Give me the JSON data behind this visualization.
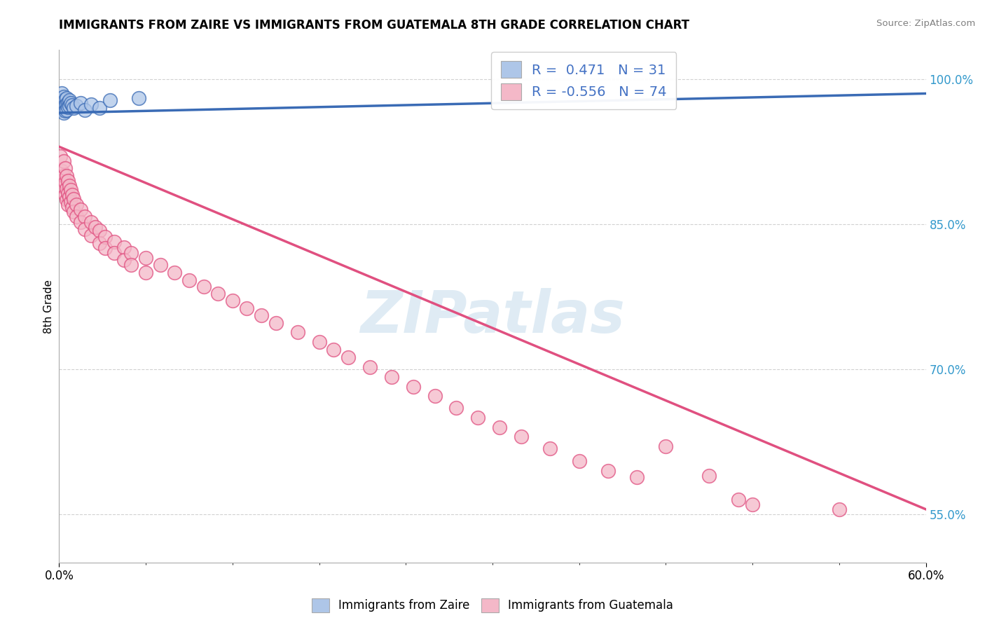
{
  "title": "IMMIGRANTS FROM ZAIRE VS IMMIGRANTS FROM GUATEMALA 8TH GRADE CORRELATION CHART",
  "source": "Source: ZipAtlas.com",
  "ylabel": "8th Grade",
  "legend1_label": "Immigrants from Zaire",
  "legend2_label": "Immigrants from Guatemala",
  "R1": 0.471,
  "N1": 31,
  "R2": -0.556,
  "N2": 74,
  "color_zaire": "#aec6e8",
  "color_guatemala": "#f4b8c8",
  "color_zaire_line": "#3a6bb5",
  "color_guatemala_line": "#e05080",
  "watermark": "ZIPatlas",
  "xlim": [
    0.0,
    0.6
  ],
  "ylim": [
    0.5,
    1.03
  ],
  "ytick_vals": [
    0.55,
    0.7,
    0.85,
    1.0
  ],
  "ytick_labels": [
    "55.0%",
    "70.0%",
    "85.0%",
    "100.0%"
  ],
  "zaire_scatter": [
    [
      0.001,
      0.98
    ],
    [
      0.001,
      0.975
    ],
    [
      0.001,
      0.97
    ],
    [
      0.002,
      0.985
    ],
    [
      0.002,
      0.978
    ],
    [
      0.002,
      0.972
    ],
    [
      0.002,
      0.968
    ],
    [
      0.003,
      0.982
    ],
    [
      0.003,
      0.976
    ],
    [
      0.003,
      0.97
    ],
    [
      0.003,
      0.965
    ],
    [
      0.004,
      0.979
    ],
    [
      0.004,
      0.973
    ],
    [
      0.004,
      0.967
    ],
    [
      0.005,
      0.98
    ],
    [
      0.005,
      0.974
    ],
    [
      0.005,
      0.968
    ],
    [
      0.006,
      0.976
    ],
    [
      0.006,
      0.971
    ],
    [
      0.007,
      0.978
    ],
    [
      0.007,
      0.972
    ],
    [
      0.008,
      0.975
    ],
    [
      0.009,
      0.973
    ],
    [
      0.01,
      0.97
    ],
    [
      0.012,
      0.972
    ],
    [
      0.015,
      0.975
    ],
    [
      0.018,
      0.968
    ],
    [
      0.022,
      0.974
    ],
    [
      0.028,
      0.97
    ],
    [
      0.035,
      0.978
    ],
    [
      0.055,
      0.98
    ]
  ],
  "guatemala_scatter": [
    [
      0.001,
      0.92
    ],
    [
      0.002,
      0.905
    ],
    [
      0.002,
      0.895
    ],
    [
      0.003,
      0.915
    ],
    [
      0.003,
      0.9
    ],
    [
      0.003,
      0.888
    ],
    [
      0.004,
      0.908
    ],
    [
      0.004,
      0.893
    ],
    [
      0.004,
      0.88
    ],
    [
      0.005,
      0.9
    ],
    [
      0.005,
      0.887
    ],
    [
      0.005,
      0.875
    ],
    [
      0.006,
      0.895
    ],
    [
      0.006,
      0.882
    ],
    [
      0.006,
      0.87
    ],
    [
      0.007,
      0.89
    ],
    [
      0.007,
      0.878
    ],
    [
      0.008,
      0.885
    ],
    [
      0.008,
      0.873
    ],
    [
      0.009,
      0.88
    ],
    [
      0.009,
      0.867
    ],
    [
      0.01,
      0.876
    ],
    [
      0.01,
      0.863
    ],
    [
      0.012,
      0.87
    ],
    [
      0.012,
      0.858
    ],
    [
      0.015,
      0.865
    ],
    [
      0.015,
      0.852
    ],
    [
      0.018,
      0.858
    ],
    [
      0.018,
      0.845
    ],
    [
      0.022,
      0.852
    ],
    [
      0.022,
      0.838
    ],
    [
      0.025,
      0.847
    ],
    [
      0.028,
      0.843
    ],
    [
      0.028,
      0.83
    ],
    [
      0.032,
      0.837
    ],
    [
      0.032,
      0.825
    ],
    [
      0.038,
      0.832
    ],
    [
      0.038,
      0.82
    ],
    [
      0.045,
      0.826
    ],
    [
      0.045,
      0.813
    ],
    [
      0.05,
      0.82
    ],
    [
      0.05,
      0.808
    ],
    [
      0.06,
      0.815
    ],
    [
      0.06,
      0.8
    ],
    [
      0.07,
      0.808
    ],
    [
      0.08,
      0.8
    ],
    [
      0.09,
      0.792
    ],
    [
      0.1,
      0.785
    ],
    [
      0.11,
      0.778
    ],
    [
      0.12,
      0.771
    ],
    [
      0.13,
      0.763
    ],
    [
      0.14,
      0.756
    ],
    [
      0.15,
      0.748
    ],
    [
      0.165,
      0.738
    ],
    [
      0.18,
      0.728
    ],
    [
      0.19,
      0.72
    ],
    [
      0.2,
      0.712
    ],
    [
      0.215,
      0.702
    ],
    [
      0.23,
      0.692
    ],
    [
      0.245,
      0.682
    ],
    [
      0.26,
      0.672
    ],
    [
      0.275,
      0.66
    ],
    [
      0.29,
      0.65
    ],
    [
      0.305,
      0.64
    ],
    [
      0.32,
      0.63
    ],
    [
      0.34,
      0.618
    ],
    [
      0.36,
      0.605
    ],
    [
      0.38,
      0.595
    ],
    [
      0.4,
      0.588
    ],
    [
      0.42,
      0.62
    ],
    [
      0.45,
      0.59
    ],
    [
      0.47,
      0.565
    ],
    [
      0.48,
      0.56
    ],
    [
      0.54,
      0.555
    ]
  ],
  "zaire_line": [
    [
      0.0,
      0.965
    ],
    [
      0.6,
      0.985
    ]
  ],
  "guatemala_line": [
    [
      0.0,
      0.93
    ],
    [
      0.6,
      0.555
    ]
  ]
}
